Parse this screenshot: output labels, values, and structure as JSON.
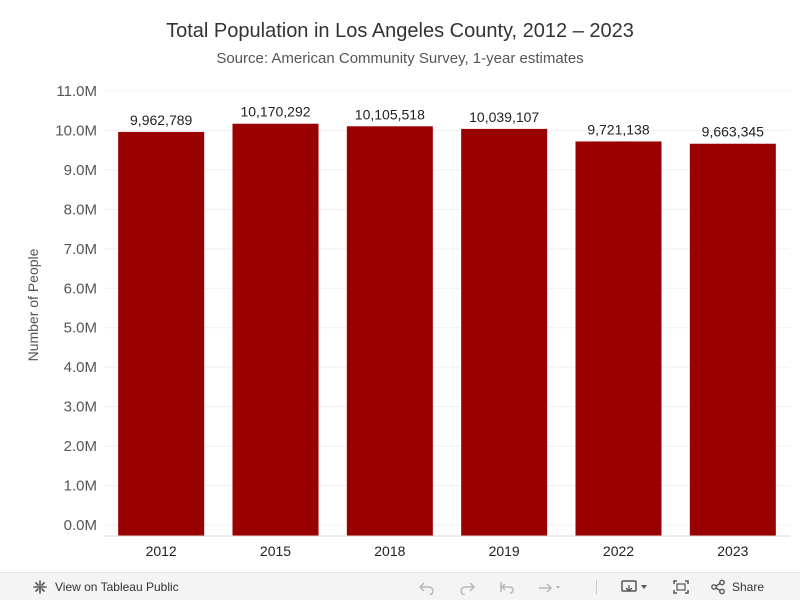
{
  "chart_data": {
    "type": "bar",
    "title": "Total Population in Los Angeles County, 2012 – 2023",
    "subtitle": "Source: American Community Survey, 1-year estimates",
    "xlabel": "",
    "ylabel": "Number of People",
    "categories": [
      "2012",
      "2015",
      "2018",
      "2019",
      "2022",
      "2023"
    ],
    "values": [
      9962789,
      10170292,
      10105518,
      10039107,
      9721138,
      9663345
    ],
    "value_labels": [
      "9,962,789",
      "10,170,292",
      "10,105,518",
      "10,039,107",
      "9,721,138",
      "9,663,345"
    ],
    "ylim": [
      0,
      11000000
    ],
    "yticks": [
      0,
      1000000,
      2000000,
      3000000,
      4000000,
      5000000,
      6000000,
      7000000,
      8000000,
      9000000,
      10000000,
      11000000
    ],
    "ytick_labels": [
      "0.0M",
      "1.0M",
      "2.0M",
      "3.0M",
      "4.0M",
      "5.0M",
      "6.0M",
      "7.0M",
      "8.0M",
      "9.0M",
      "10.0M",
      "11.0M"
    ],
    "bar_color": "#990000",
    "grid": true
  },
  "toolbar": {
    "view_label": "View on Tableau Public",
    "share_label": "Share",
    "icons": [
      "tableau-logo-icon",
      "undo-icon",
      "redo-icon",
      "revert-icon",
      "refresh-icon",
      "download-icon",
      "fullscreen-icon",
      "share-icon"
    ]
  }
}
